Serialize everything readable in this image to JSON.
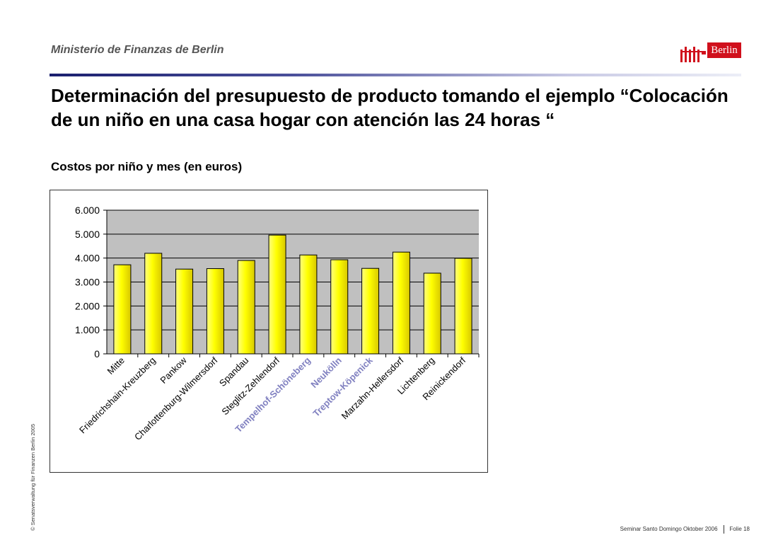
{
  "header": {
    "ministry": "Ministerio de Finanzas de Berlin",
    "logo_text": "Berlin"
  },
  "slide": {
    "title": "Determinación del presupuesto de producto tomando el ejemplo “Colocación de un niño en una casa hogar con atención las 24 horas “",
    "subtitle": "Costos por niño y mes (en euros)"
  },
  "sidebar_text": "© Senatsverwaltung für Finanzen Berlin 2005",
  "footer": {
    "seminar": "Seminar Santo Domingo Oktober 2006",
    "page": "Folie 18"
  },
  "colors": {
    "plot_bg": "#c0c0c0",
    "bar_fill": "#ffff00",
    "bar_edge": "#000000",
    "highlight_label": "#8080c0",
    "logo_red": "#d0101c"
  },
  "chart_data": {
    "type": "bar",
    "title": "",
    "xlabel": "",
    "ylabel": "",
    "ylim": [
      0,
      6000
    ],
    "yticks": [
      0,
      1000,
      2000,
      3000,
      4000,
      5000,
      6000
    ],
    "ytick_labels": [
      "0",
      "1.000",
      "2.000",
      "3.000",
      "4.000",
      "5.000",
      "6.000"
    ],
    "grid": true,
    "categories": [
      "Mitte",
      "Friedrichshain-Kreuzberg",
      "Pankow",
      "Charlottenburg-Wilmersdorf",
      "Spandau",
      "Steglitz-Zehlendorf",
      "Tempelhof-Schöneberg",
      "Neukölln",
      "Treptow-Köpenick",
      "Marzahn-Hellersdorf",
      "Lichtenberg",
      "Reinickendorf"
    ],
    "highlighted_categories": [
      "Tempelhof-Schöneberg",
      "Neukölln",
      "Treptow-Köpenick"
    ],
    "values": [
      3720,
      4200,
      3540,
      3560,
      3900,
      4960,
      4130,
      3930,
      3570,
      4250,
      3370,
      3990
    ]
  }
}
